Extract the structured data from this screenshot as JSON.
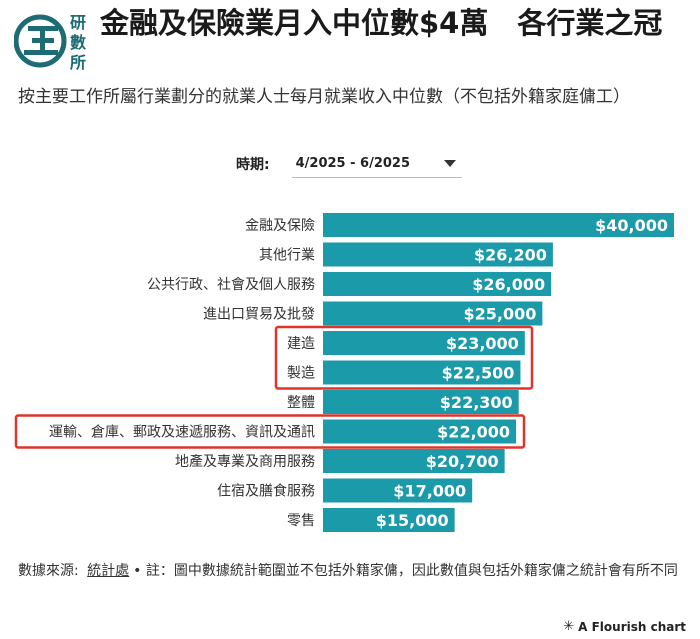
{
  "header": {
    "logo_chars": [
      "研",
      "數",
      "所"
    ],
    "title": "金融及保險業月入中位數$4萬　各行業之冠",
    "subtitle": "按主要工作所屬行業劃分的就業人士每月就業收入中位數（不包括外籍家庭傭工）"
  },
  "filter": {
    "label": "時期:",
    "selected": "4/2025 - 6/2025"
  },
  "colors": {
    "bar": "#1b9aaa",
    "highlight": "#e0342b"
  },
  "chart_data": {
    "type": "bar",
    "orientation": "horizontal",
    "categories": [
      "金融及保險",
      "其他行業",
      "公共行政、社會及個人服務",
      "進出口貿易及批發",
      "建造",
      "製造",
      "整體",
      "運輸、倉庫、郵政及速遞服務、資訊及通訊",
      "地產及專業及商用服務",
      "住宿及膳食服務",
      "零售"
    ],
    "values": [
      40000,
      26200,
      26000,
      25000,
      23000,
      22500,
      22300,
      22000,
      20700,
      17000,
      15000
    ],
    "value_labels": [
      "$40,000",
      "$26,200",
      "$26,000",
      "$25,000",
      "$23,000",
      "$22,500",
      "$22,300",
      "$22,000",
      "$20,700",
      "$17,000",
      "$15,000"
    ],
    "xlim": [
      0,
      40000
    ],
    "highlighted_groups": [
      [
        "建造",
        "製造"
      ],
      [
        "運輸、倉庫、郵政及速遞服務、資訊及通訊"
      ]
    ]
  },
  "footer": {
    "source_label": "數據來源:",
    "source_link": "統計處",
    "note": "• 註：圖中數據統計範圍並不包括外籍家傭，因此數值與包括外籍家傭之統計會有所不同",
    "credit": "A Flourish chart",
    "credit_icon": "flourish-star-icon"
  }
}
